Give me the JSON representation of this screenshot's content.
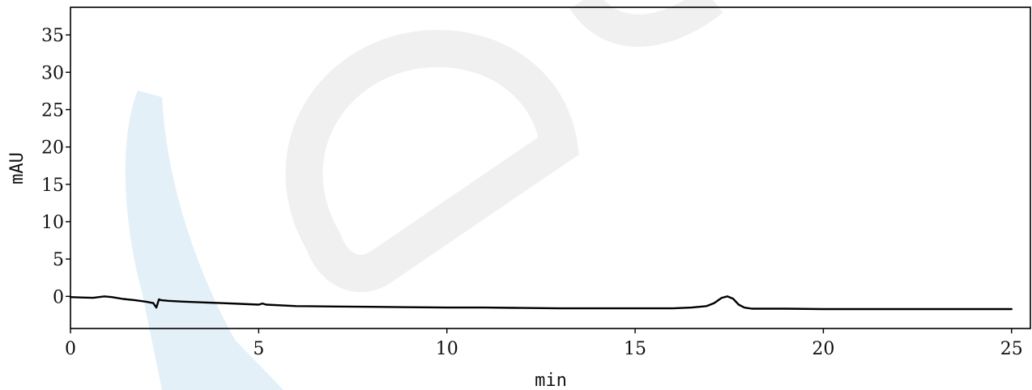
{
  "chart_data": {
    "type": "line",
    "title": "",
    "xlabel": "min",
    "ylabel": "mAU",
    "xlim": [
      0,
      25.5
    ],
    "ylim": [
      -4.3,
      38.7
    ],
    "xticks": [
      0,
      5,
      10,
      15,
      20,
      25
    ],
    "yticks": [
      0,
      5,
      10,
      15,
      20,
      25,
      30,
      35
    ],
    "grid": false,
    "colors": {
      "trace": "#000000",
      "frame": "#000000",
      "background": "#ffffff"
    },
    "series": [
      {
        "x": [
          0.0,
          0.3,
          0.6,
          0.9,
          1.1,
          1.4,
          1.7,
          2.0,
          2.2,
          2.28,
          2.3,
          2.35,
          2.4,
          2.6,
          3.0,
          3.5,
          4.0,
          4.5,
          5.0,
          5.1,
          5.2,
          6.0,
          7.0,
          8.0,
          9.0,
          10.0,
          11.0,
          12.0,
          13.0,
          14.0,
          15.0,
          16.0,
          16.5,
          16.9,
          17.1,
          17.3,
          17.45,
          17.6,
          17.75,
          17.9,
          18.1,
          18.5,
          19.0,
          20.0,
          21.0,
          22.0,
          23.0,
          24.0,
          25.0
        ],
        "y": [
          -0.1,
          -0.15,
          -0.2,
          0.0,
          -0.1,
          -0.35,
          -0.5,
          -0.7,
          -0.9,
          -1.5,
          -1.2,
          -0.4,
          -0.5,
          -0.6,
          -0.7,
          -0.8,
          -0.9,
          -1.0,
          -1.1,
          -0.95,
          -1.1,
          -1.3,
          -1.35,
          -1.4,
          -1.45,
          -1.5,
          -1.5,
          -1.55,
          -1.6,
          -1.6,
          -1.6,
          -1.6,
          -1.5,
          -1.3,
          -0.9,
          -0.2,
          0.0,
          -0.3,
          -1.1,
          -1.5,
          -1.65,
          -1.65,
          -1.65,
          -1.7,
          -1.7,
          -1.7,
          -1.7,
          -1.7,
          -1.7
        ]
      }
    ]
  }
}
